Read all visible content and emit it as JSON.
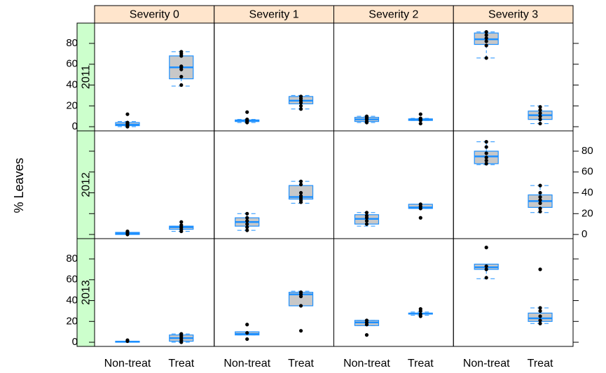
{
  "chart_data": {
    "type": "boxplot",
    "ylabel": "% Leaves",
    "categories": [
      "Non-treat",
      "Treat"
    ],
    "columns": [
      "Severity 0",
      "Severity 1",
      "Severity 2",
      "Severity 3"
    ],
    "rows": [
      "2011",
      "2012",
      "2013"
    ],
    "ylim": [
      -4,
      99.5
    ],
    "yticks": [
      0,
      20,
      40,
      60,
      80
    ],
    "box_color": "#c8c8c8",
    "line_color": "#1e90ff",
    "point_color": "#000000",
    "panels": [
      [
        [
          {
            "low": 0,
            "q1": 1,
            "median": 2,
            "q3": 4,
            "high": 5,
            "points": [
              0,
              1,
              2,
              3,
              4,
              12
            ]
          },
          {
            "low": 39,
            "q1": 46,
            "median": 57,
            "q3": 68,
            "high": 72,
            "points": [
              40,
              48,
              55,
              57,
              58,
              68,
              70,
              72
            ]
          }
        ],
        [
          {
            "low": 4,
            "q1": 5,
            "median": 5.5,
            "q3": 6.5,
            "high": 7,
            "points": [
              4,
              5,
              6,
              7,
              14
            ]
          },
          {
            "low": 17,
            "q1": 22,
            "median": 25,
            "q3": 29,
            "high": 30,
            "points": [
              17,
              20,
              23,
              25,
              27,
              29
            ]
          }
        ],
        [
          {
            "low": 4,
            "q1": 5,
            "median": 7,
            "q3": 9,
            "high": 10,
            "points": [
              4,
              5,
              7,
              8,
              9,
              10
            ]
          },
          {
            "low": 6,
            "q1": 6,
            "median": 7,
            "q3": 7.5,
            "high": 8,
            "points": [
              3,
              6,
              7,
              8,
              12
            ]
          }
        ],
        [
          {
            "low": 66,
            "q1": 79,
            "median": 84,
            "q3": 90,
            "high": 91,
            "points": [
              66,
              78,
              82,
              85,
              88,
              91
            ]
          },
          {
            "low": 3,
            "q1": 7,
            "median": 11,
            "q3": 15,
            "high": 20,
            "points": [
              3,
              7,
              10,
              13,
              16,
              19
            ]
          }
        ]
      ],
      [
        [
          {
            "low": 0,
            "q1": 0,
            "median": 1,
            "q3": 2,
            "high": 2,
            "points": [
              0,
              1,
              2,
              3
            ]
          },
          {
            "low": 3,
            "q1": 5,
            "median": 7,
            "q3": 8,
            "high": 8,
            "points": [
              3,
              5,
              7,
              9,
              12
            ]
          }
        ],
        [
          {
            "low": 4,
            "q1": 8,
            "median": 12,
            "q3": 16,
            "high": 20,
            "points": [
              4,
              7,
              10,
              13,
              16,
              20
            ]
          },
          {
            "low": 30,
            "q1": 34,
            "median": 36,
            "q3": 47,
            "high": 51,
            "points": [
              31,
              33,
              35,
              37,
              40,
              48,
              51
            ]
          }
        ],
        [
          {
            "low": 8,
            "q1": 10,
            "median": 15,
            "q3": 19,
            "high": 21,
            "points": [
              10,
              13,
              16,
              18,
              21
            ]
          },
          {
            "low": 25,
            "q1": 25,
            "median": 26,
            "q3": 29,
            "high": 29,
            "points": [
              16,
              25,
              27,
              29
            ]
          }
        ],
        [
          {
            "low": 67,
            "q1": 68,
            "median": 75,
            "q3": 80,
            "high": 89,
            "points": [
              68,
              71,
              74,
              78,
              84,
              89
            ]
          },
          {
            "low": 21,
            "q1": 26,
            "median": 32,
            "q3": 38,
            "high": 47,
            "points": [
              22,
              25,
              30,
              33,
              36,
              40,
              47
            ]
          }
        ]
      ],
      [
        [
          {
            "low": 0,
            "q1": 0,
            "median": 0.5,
            "q3": 1,
            "high": 1,
            "points": [
              1,
              2
            ]
          },
          {
            "low": 0,
            "q1": 1,
            "median": 4,
            "q3": 7,
            "high": 8,
            "points": [
              0,
              2,
              4,
              6,
              8
            ]
          }
        ],
        [
          {
            "low": 7,
            "q1": 7,
            "median": 8,
            "q3": 10,
            "high": 10,
            "points": [
              3,
              9,
              17
            ]
          },
          {
            "low": 35,
            "q1": 35,
            "median": 46,
            "q3": 48,
            "high": 49,
            "points": [
              11,
              35,
              44,
              46,
              48
            ]
          }
        ],
        [
          {
            "low": 16,
            "q1": 16,
            "median": 19,
            "q3": 21,
            "high": 21,
            "points": [
              7,
              17,
              19,
              21
            ]
          },
          {
            "low": 26,
            "q1": 27,
            "median": 27.5,
            "q3": 28,
            "high": 29,
            "points": [
              25,
              27,
              30,
              32
            ]
          }
        ],
        [
          {
            "low": 61,
            "q1": 70,
            "median": 72,
            "q3": 75,
            "high": 75,
            "points": [
              62,
              70,
              73,
              91
            ]
          },
          {
            "low": 18,
            "q1": 20,
            "median": 23,
            "q3": 28,
            "high": 33,
            "points": [
              18,
              21,
              25,
              30,
              33,
              70
            ]
          }
        ]
      ]
    ]
  }
}
